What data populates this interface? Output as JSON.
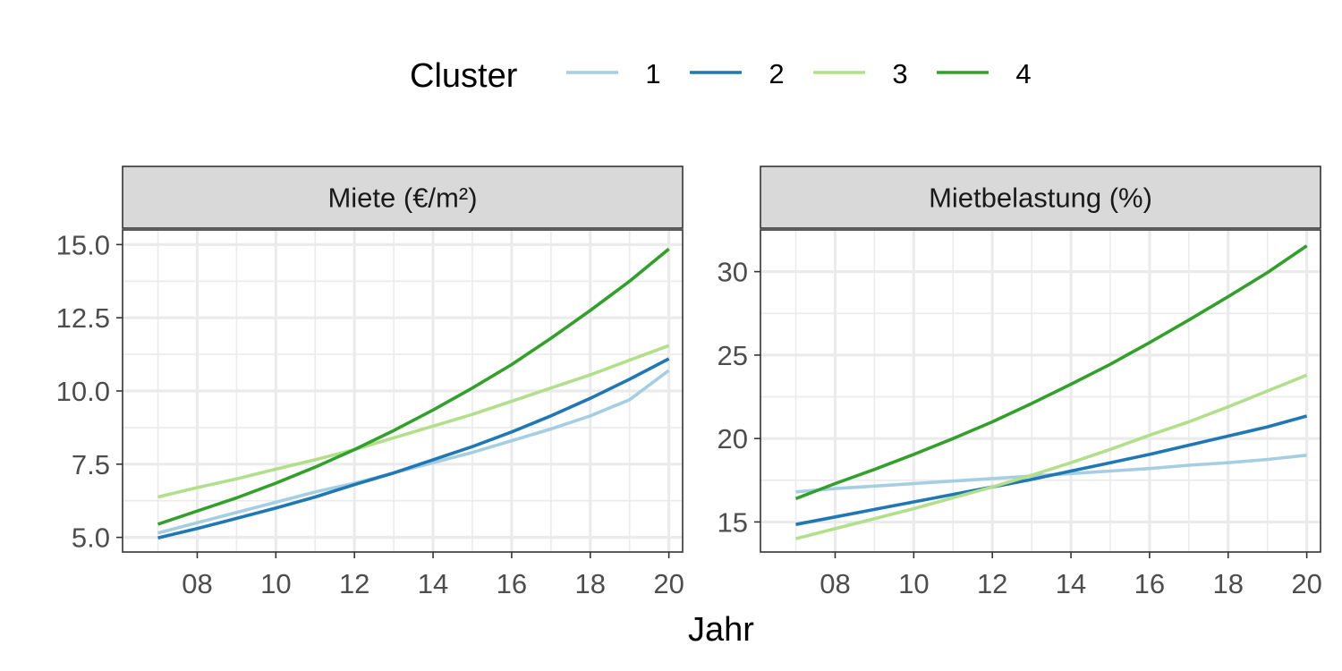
{
  "chart_data": {
    "type": "line",
    "xlabel": "Jahr",
    "legend": {
      "title": "Cluster",
      "position": "top",
      "entries": [
        {
          "label": "1",
          "color": "#a6cee3"
        },
        {
          "label": "2",
          "color": "#1f78b4"
        },
        {
          "label": "3",
          "color": "#b2df8a"
        },
        {
          "label": "4",
          "color": "#33a02c"
        }
      ]
    },
    "x": [
      7,
      8,
      9,
      10,
      11,
      12,
      13,
      14,
      15,
      16,
      17,
      18,
      19,
      20
    ],
    "x_tick_values": [
      8,
      10,
      12,
      14,
      16,
      18,
      20
    ],
    "x_tick_labels": [
      "08",
      "10",
      "12",
      "14",
      "16",
      "18",
      "20"
    ],
    "xlim": [
      6.1,
      20.35
    ],
    "grid": true,
    "panels": [
      {
        "title": "Miete (€/m²)",
        "ylim": [
          4.5,
          15.5
        ],
        "y_ticks": [
          5.0,
          7.5,
          10.0,
          12.5,
          15.0
        ],
        "y_tick_labels": [
          "5.0",
          "7.5",
          "10.0",
          "12.5",
          "15.0"
        ],
        "series": [
          {
            "name": "1",
            "color": "#a6cee3",
            "values": [
              5.15,
              5.5,
              5.85,
              6.2,
              6.55,
              6.85,
              7.2,
              7.55,
              7.9,
              8.3,
              8.7,
              9.15,
              9.7,
              10.7
            ]
          },
          {
            "name": "2",
            "color": "#1f78b4",
            "values": [
              4.98,
              5.3,
              5.65,
              6.0,
              6.38,
              6.8,
              7.2,
              7.65,
              8.1,
              8.6,
              9.15,
              9.75,
              10.4,
              11.1
            ]
          },
          {
            "name": "3",
            "color": "#b2df8a",
            "values": [
              6.38,
              6.7,
              7.0,
              7.33,
              7.65,
              8.0,
              8.4,
              8.8,
              9.2,
              9.65,
              10.1,
              10.55,
              11.05,
              11.55
            ]
          },
          {
            "name": "4",
            "color": "#33a02c",
            "values": [
              5.45,
              5.9,
              6.35,
              6.85,
              7.4,
              8.0,
              8.65,
              9.35,
              10.1,
              10.9,
              11.8,
              12.75,
              13.75,
              14.85
            ]
          }
        ]
      },
      {
        "title": "Mietbelastung (%)",
        "ylim": [
          13.2,
          32.5
        ],
        "y_ticks": [
          15,
          20,
          25,
          30
        ],
        "y_tick_labels": [
          "15",
          "20",
          "25",
          "30"
        ],
        "series": [
          {
            "name": "1",
            "color": "#a6cee3",
            "values": [
              16.8,
              17.0,
              17.15,
              17.3,
              17.45,
              17.6,
              17.75,
              17.9,
              18.05,
              18.2,
              18.4,
              18.55,
              18.75,
              19.0
            ]
          },
          {
            "name": "2",
            "color": "#1f78b4",
            "values": [
              14.85,
              15.3,
              15.75,
              16.2,
              16.65,
              17.1,
              17.55,
              18.05,
              18.55,
              19.05,
              19.6,
              20.15,
              20.7,
              21.35
            ]
          },
          {
            "name": "3",
            "color": "#b2df8a",
            "values": [
              14.0,
              14.6,
              15.2,
              15.8,
              16.45,
              17.1,
              17.8,
              18.55,
              19.35,
              20.2,
              21.0,
              21.9,
              22.85,
              23.8
            ]
          },
          {
            "name": "4",
            "color": "#33a02c",
            "values": [
              16.4,
              17.3,
              18.15,
              19.05,
              20.0,
              21.0,
              22.1,
              23.25,
              24.45,
              25.75,
              27.1,
              28.5,
              29.95,
              31.55
            ]
          }
        ]
      }
    ]
  }
}
